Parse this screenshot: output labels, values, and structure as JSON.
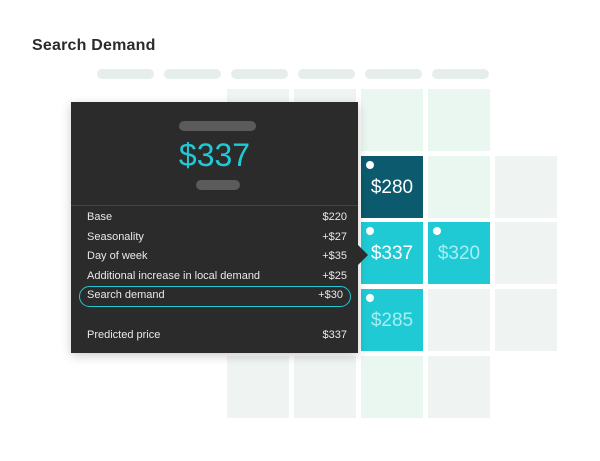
{
  "page": {
    "title": "Search Demand"
  },
  "cells": [
    {
      "price": "$280",
      "style": "dark"
    },
    {
      "price": "$337",
      "style": "teal"
    },
    {
      "price": "$320",
      "style": "teal-faded"
    },
    {
      "price": "$285",
      "style": "teal-faded"
    }
  ],
  "tooltip": {
    "price": "$337",
    "rows": [
      {
        "label": "Base",
        "value": "$220"
      },
      {
        "label": "Seasonality",
        "value": "+$27"
      },
      {
        "label": "Day of week",
        "value": "+$35"
      },
      {
        "label": "Additional increase in local demand",
        "value": "+$25"
      },
      {
        "label": "Search demand",
        "value": "+$30",
        "highlighted": true
      }
    ],
    "total": {
      "label": "Predicted price",
      "value": "$337"
    }
  },
  "colors": {
    "teal": "#1fcad5",
    "dark_teal": "#0b5a6d",
    "tooltip_bg": "#2b2b2b",
    "light_cell": "#eff4f2",
    "green_cell": "#e9f7f0"
  }
}
